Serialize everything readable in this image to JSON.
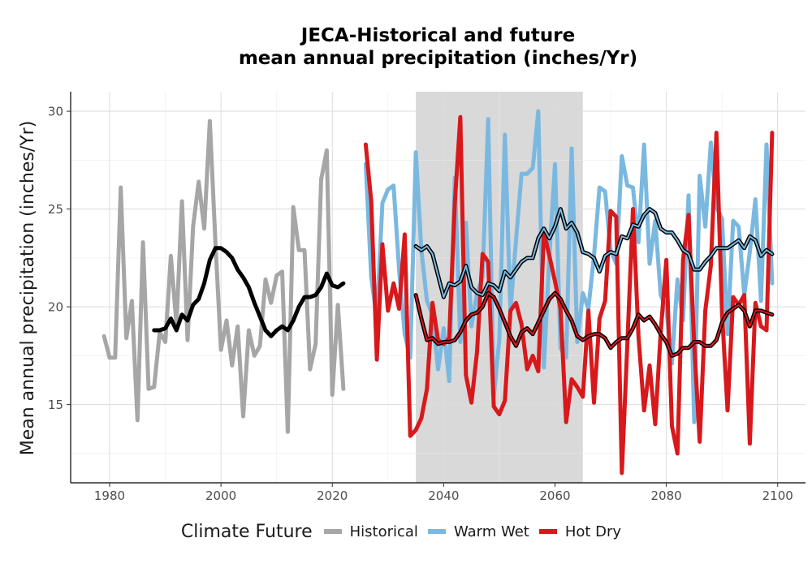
{
  "chart_data": {
    "type": "line",
    "title": [
      "JECA-Historical and future",
      "mean annual precipitation (inches/Yr)"
    ],
    "xlabel": "",
    "ylabel": "Mean annual precipitation (inches/Yr)",
    "xlim": [
      1973,
      2105
    ],
    "ylim": [
      11,
      31
    ],
    "x_ticks": [
      1980,
      2000,
      2020,
      2040,
      2060,
      2080,
      2100
    ],
    "y_ticks": [
      15,
      20,
      25,
      30
    ],
    "grid": true,
    "shaded_period": [
      2035,
      2065
    ],
    "legend": {
      "title": "Climate Future",
      "position": "bottom"
    },
    "series": [
      {
        "name": "Historical",
        "color": "#a6a6a6",
        "x": [
          1979,
          1980,
          1981,
          1982,
          1983,
          1984,
          1985,
          1986,
          1987,
          1988,
          1989,
          1990,
          1991,
          1992,
          1993,
          1994,
          1995,
          1996,
          1997,
          1998,
          1999,
          2000,
          2001,
          2002,
          2003,
          2004,
          2005,
          2006,
          2007,
          2008,
          2009,
          2010,
          2011,
          2012,
          2013,
          2014,
          2015,
          2016,
          2017,
          2018,
          2019,
          2020,
          2021,
          2022
        ],
        "values": [
          18.5,
          17.4,
          17.4,
          26.1,
          18.4,
          20.3,
          14.2,
          23.3,
          15.8,
          15.9,
          18.7,
          18.2,
          22.6,
          19.1,
          25.4,
          18.3,
          24.1,
          26.4,
          24.0,
          29.5,
          23.3,
          17.8,
          19.3,
          17.0,
          19.0,
          14.4,
          18.8,
          17.5,
          18.0,
          21.4,
          20.2,
          21.6,
          21.8,
          13.6,
          25.1,
          22.9,
          22.9,
          16.8,
          18.1,
          26.5,
          28.0,
          15.5,
          20.1,
          15.8
        ]
      },
      {
        "name": "Historical smoothed",
        "color": "#000000",
        "x": [
          1988,
          1989,
          1990,
          1991,
          1992,
          1993,
          1994,
          1995,
          1996,
          1997,
          1998,
          1999,
          2000,
          2001,
          2002,
          2003,
          2004,
          2005,
          2006,
          2007,
          2008,
          2009,
          2010,
          2011,
          2012,
          2013,
          2014,
          2015,
          2016,
          2017,
          2018,
          2019,
          2020,
          2021,
          2022
        ],
        "values": [
          18.8,
          18.8,
          18.9,
          19.4,
          18.8,
          19.6,
          19.3,
          20.1,
          20.4,
          21.2,
          22.4,
          23.0,
          23.0,
          22.8,
          22.5,
          21.9,
          21.5,
          21.0,
          20.2,
          19.5,
          18.8,
          18.5,
          18.8,
          19.0,
          18.8,
          19.3,
          20.0,
          20.5,
          20.5,
          20.6,
          21.0,
          21.7,
          21.1,
          21.0,
          21.2
        ]
      },
      {
        "name": "Warm Wet",
        "color": "#7ab8e0",
        "x": [
          2026,
          2027,
          2028,
          2029,
          2030,
          2031,
          2032,
          2033,
          2034,
          2035,
          2036,
          2037,
          2038,
          2039,
          2040,
          2041,
          2042,
          2043,
          2044,
          2045,
          2046,
          2047,
          2048,
          2049,
          2050,
          2051,
          2052,
          2053,
          2054,
          2055,
          2056,
          2057,
          2058,
          2059,
          2060,
          2061,
          2062,
          2063,
          2064,
          2065,
          2066,
          2067,
          2068,
          2069,
          2070,
          2071,
          2072,
          2073,
          2074,
          2075,
          2076,
          2077,
          2078,
          2079,
          2080,
          2081,
          2082,
          2083,
          2084,
          2085,
          2086,
          2087,
          2088,
          2089,
          2090,
          2091,
          2092,
          2093,
          2094,
          2095,
          2096,
          2097,
          2098,
          2099
        ],
        "values": [
          27.3,
          21.5,
          19.4,
          25.3,
          26.0,
          26.2,
          21.9,
          18.6,
          17.4,
          27.9,
          22.9,
          20.3,
          19.6,
          16.8,
          18.9,
          16.2,
          26.6,
          18.2,
          24.3,
          19.0,
          20.7,
          21.5,
          29.6,
          15.4,
          18.3,
          28.8,
          19.8,
          23.4,
          26.8,
          26.8,
          27.1,
          30.0,
          16.9,
          22.6,
          27.3,
          17.9,
          17.4,
          28.1,
          18.2,
          20.7,
          19.9,
          22.6,
          26.1,
          25.9,
          22.9,
          22.2,
          27.7,
          26.2,
          26.1,
          23.3,
          28.3,
          22.2,
          24.4,
          20.6,
          19.9,
          17.1,
          21.4,
          19.3,
          25.7,
          14.1,
          26.7,
          24.1,
          28.4,
          25.1,
          24.5,
          18.6,
          24.4,
          24.1,
          20.6,
          22.8,
          25.5,
          20.3,
          28.3,
          21.2
        ]
      },
      {
        "name": "Warm Wet smoothed",
        "color": "#7ab8e0",
        "x": [
          2035,
          2036,
          2037,
          2038,
          2039,
          2040,
          2041,
          2042,
          2043,
          2044,
          2045,
          2046,
          2047,
          2048,
          2049,
          2050,
          2051,
          2052,
          2053,
          2054,
          2055,
          2056,
          2057,
          2058,
          2059,
          2060,
          2061,
          2062,
          2063,
          2064,
          2065,
          2066,
          2067,
          2068,
          2069,
          2070,
          2071,
          2072,
          2073,
          2074,
          2075,
          2076,
          2077,
          2078,
          2079,
          2080,
          2081,
          2082,
          2083,
          2084,
          2085,
          2086,
          2087,
          2088,
          2089,
          2090,
          2091,
          2092,
          2093,
          2094,
          2095,
          2096,
          2097,
          2098,
          2099
        ],
        "values": [
          23.1,
          22.9,
          23.1,
          22.7,
          21.6,
          20.5,
          21.2,
          21.1,
          21.3,
          22.1,
          21.0,
          20.7,
          20.6,
          21.2,
          21.1,
          20.8,
          21.8,
          21.5,
          21.9,
          22.3,
          22.5,
          22.5,
          23.5,
          24.0,
          23.5,
          24.1,
          25.0,
          24.0,
          24.3,
          23.8,
          22.8,
          22.7,
          22.5,
          21.8,
          22.6,
          22.8,
          22.7,
          23.6,
          23.5,
          24.2,
          24.1,
          24.7,
          25.0,
          24.8,
          24.0,
          23.8,
          23.8,
          23.4,
          22.9,
          22.7,
          21.9,
          21.9,
          22.3,
          22.6,
          23.0,
          23.0,
          23.0,
          23.2,
          23.4,
          23.0,
          23.6,
          23.4,
          22.6,
          22.9,
          22.7
        ]
      },
      {
        "name": "Hot Dry",
        "color": "#d7191c",
        "x": [
          2026,
          2027,
          2028,
          2029,
          2030,
          2031,
          2032,
          2033,
          2034,
          2035,
          2036,
          2037,
          2038,
          2039,
          2040,
          2041,
          2042,
          2043,
          2044,
          2045,
          2046,
          2047,
          2048,
          2049,
          2050,
          2051,
          2052,
          2053,
          2054,
          2055,
          2056,
          2057,
          2058,
          2059,
          2060,
          2061,
          2062,
          2063,
          2064,
          2065,
          2066,
          2067,
          2068,
          2069,
          2070,
          2071,
          2072,
          2073,
          2074,
          2075,
          2076,
          2077,
          2078,
          2079,
          2080,
          2081,
          2082,
          2083,
          2084,
          2085,
          2086,
          2087,
          2088,
          2089,
          2090,
          2091,
          2092,
          2093,
          2094,
          2095,
          2096,
          2097,
          2098,
          2099
        ],
        "values": [
          28.3,
          25.4,
          17.3,
          23.2,
          19.8,
          21.2,
          19.9,
          23.7,
          13.4,
          13.7,
          14.3,
          15.8,
          20.2,
          18.3,
          18.1,
          18.4,
          25.3,
          29.7,
          16.5,
          15.1,
          17.7,
          22.7,
          22.3,
          14.9,
          14.5,
          15.2,
          19.8,
          20.2,
          19.1,
          16.8,
          17.5,
          16.7,
          23.8,
          22.6,
          21.3,
          19.9,
          14.1,
          16.3,
          15.9,
          15.4,
          19.8,
          15.1,
          19.4,
          20.3,
          24.9,
          24.6,
          11.5,
          18.1,
          25.0,
          18.5,
          14.7,
          17.0,
          14.0,
          18.7,
          22.4,
          13.9,
          12.5,
          22.4,
          24.7,
          18.1,
          13.1,
          19.8,
          22.1,
          28.9,
          19.7,
          14.7,
          20.5,
          20.1,
          20.6,
          13.0,
          20.2,
          19.0,
          18.8,
          28.9
        ]
      },
      {
        "name": "Hot Dry smoothed",
        "color": "#d7191c",
        "x": [
          2035,
          2036,
          2037,
          2038,
          2039,
          2040,
          2041,
          2042,
          2043,
          2044,
          2045,
          2046,
          2047,
          2048,
          2049,
          2050,
          2051,
          2052,
          2053,
          2054,
          2055,
          2056,
          2057,
          2058,
          2059,
          2060,
          2061,
          2062,
          2063,
          2064,
          2065,
          2066,
          2067,
          2068,
          2069,
          2070,
          2071,
          2072,
          2073,
          2074,
          2075,
          2076,
          2077,
          2078,
          2079,
          2080,
          2081,
          2082,
          2083,
          2084,
          2085,
          2086,
          2087,
          2088,
          2089,
          2090,
          2091,
          2092,
          2093,
          2094,
          2095,
          2096,
          2097,
          2098,
          2099
        ],
        "values": [
          20.6,
          19.4,
          18.3,
          18.4,
          18.1,
          18.2,
          18.2,
          18.3,
          18.7,
          19.3,
          19.6,
          19.7,
          20.0,
          20.7,
          20.5,
          19.9,
          19.2,
          18.5,
          18.0,
          18.7,
          18.9,
          18.6,
          19.2,
          19.8,
          20.4,
          20.7,
          20.4,
          19.8,
          19.3,
          18.5,
          18.3,
          18.5,
          18.6,
          18.6,
          18.4,
          17.9,
          18.2,
          18.4,
          18.4,
          18.9,
          19.6,
          19.3,
          19.5,
          19.1,
          18.6,
          18.2,
          17.5,
          17.6,
          17.9,
          17.9,
          18.2,
          18.2,
          18.0,
          18.0,
          18.3,
          19.2,
          19.7,
          19.9,
          20.1,
          19.8,
          19.0,
          19.8,
          19.8,
          19.7,
          19.6
        ]
      }
    ]
  }
}
